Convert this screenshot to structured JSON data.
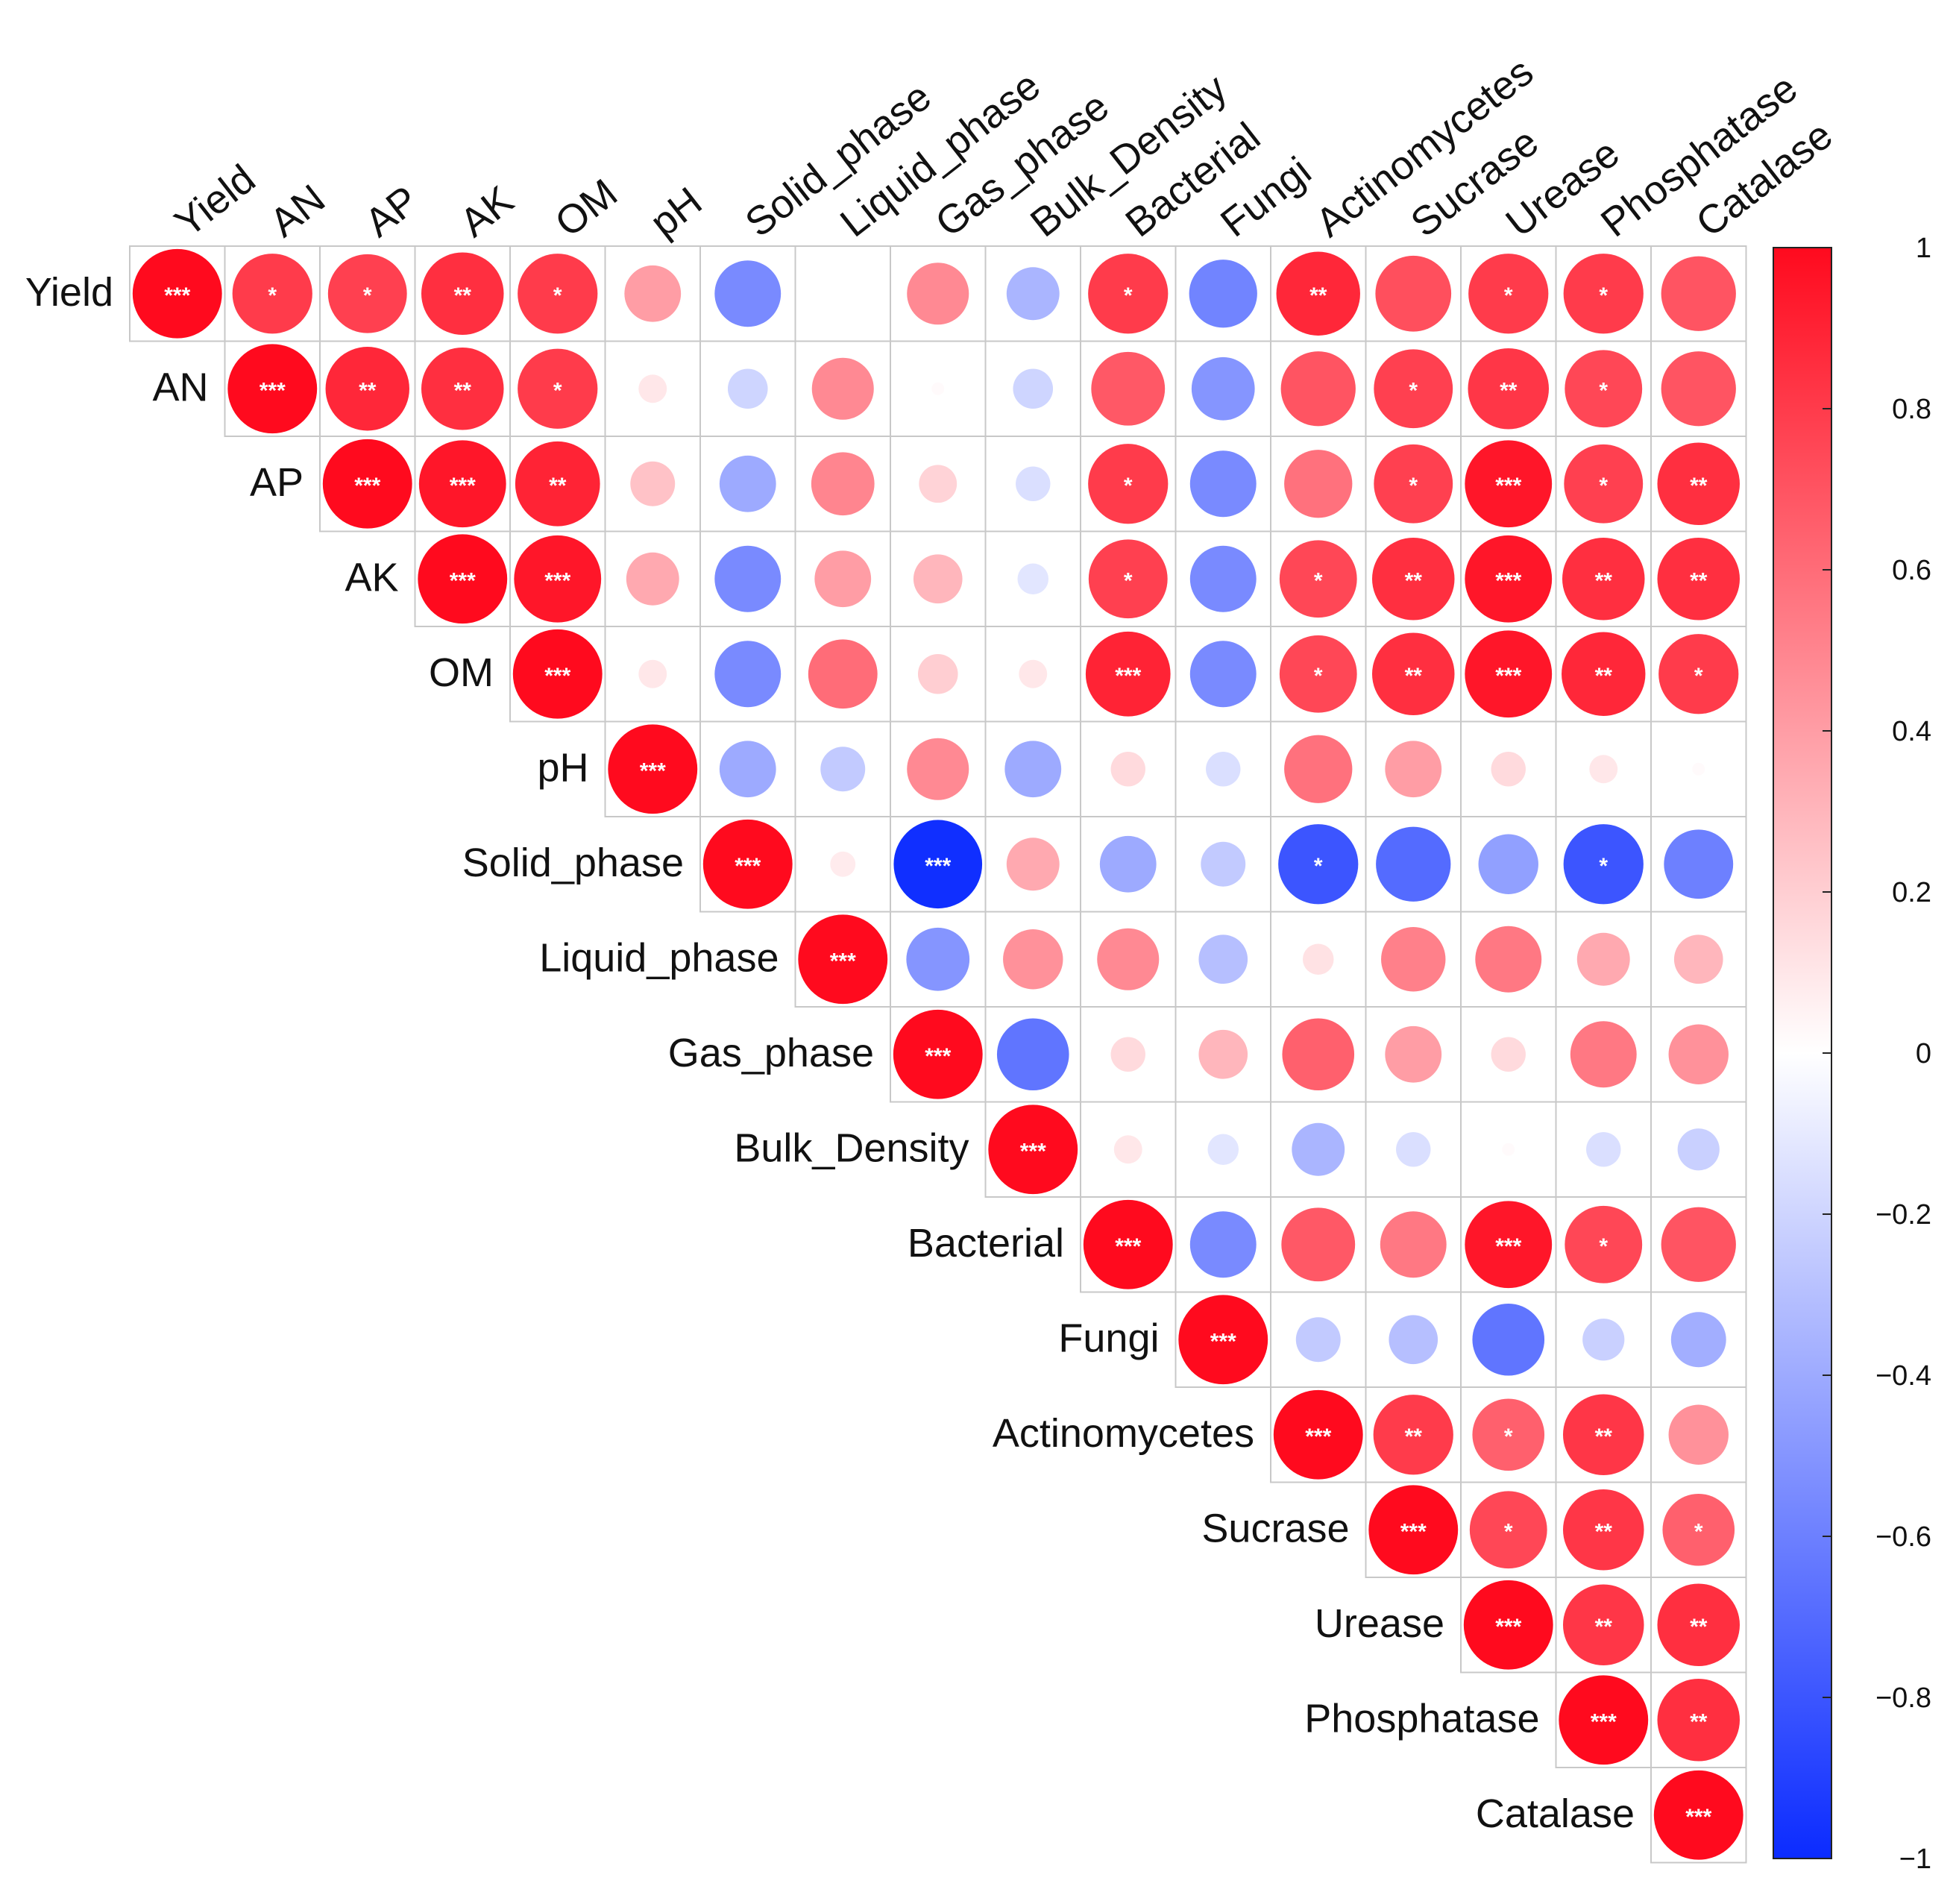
{
  "chart_data": {
    "type": "heatmap",
    "subtype": "correlation-circle-matrix-upper-triangle",
    "variables": [
      "Yield",
      "AN",
      "AP",
      "AK",
      "OM",
      "pH",
      "Solid_phase",
      "Liquid_phase",
      "Gas_phase",
      "Bulk_Density",
      "Bacterial",
      "Fungi",
      "Actinomycetes",
      "Sucrase",
      "Urease",
      "Phosphatase",
      "Catalase"
    ],
    "correlations": [
      [
        1.0,
        0.8,
        0.78,
        0.85,
        0.8,
        0.4,
        -0.55,
        0.0,
        0.48,
        -0.35,
        0.8,
        -0.58,
        0.88,
        0.72,
        0.8,
        0.8,
        0.7
      ],
      [
        null,
        1.0,
        0.88,
        0.85,
        0.8,
        0.1,
        -0.2,
        0.48,
        0.02,
        -0.2,
        0.68,
        -0.5,
        0.7,
        0.78,
        0.82,
        0.75,
        0.7
      ],
      [
        null,
        null,
        1.0,
        0.95,
        0.9,
        0.25,
        -0.4,
        0.5,
        0.18,
        -0.15,
        0.8,
        -0.55,
        0.58,
        0.78,
        0.95,
        0.78,
        0.85
      ],
      [
        null,
        null,
        null,
        1.0,
        0.95,
        0.35,
        -0.55,
        0.4,
        0.3,
        -0.12,
        0.78,
        -0.55,
        0.75,
        0.85,
        0.95,
        0.85,
        0.85
      ],
      [
        null,
        null,
        null,
        null,
        1.0,
        0.1,
        -0.55,
        0.6,
        0.2,
        0.1,
        0.9,
        -0.55,
        0.75,
        0.85,
        0.95,
        0.88,
        0.8
      ],
      [
        null,
        null,
        null,
        null,
        null,
        1.0,
        -0.4,
        -0.25,
        0.48,
        -0.4,
        0.15,
        -0.15,
        0.58,
        0.4,
        0.15,
        0.1,
        0.02
      ],
      [
        null,
        null,
        null,
        null,
        null,
        null,
        1.0,
        0.08,
        -0.98,
        0.35,
        -0.4,
        -0.25,
        -0.8,
        -0.7,
        -0.45,
        -0.8,
        -0.6
      ],
      [
        null,
        null,
        null,
        null,
        null,
        null,
        null,
        1.0,
        -0.5,
        0.45,
        0.48,
        -0.3,
        0.12,
        0.52,
        0.55,
        0.35,
        0.3
      ],
      [
        null,
        null,
        null,
        null,
        null,
        null,
        null,
        null,
        1.0,
        -0.65,
        0.15,
        0.3,
        0.65,
        0.4,
        0.15,
        0.55,
        0.45
      ],
      [
        null,
        null,
        null,
        null,
        null,
        null,
        null,
        null,
        null,
        1.0,
        0.1,
        -0.12,
        -0.35,
        -0.15,
        0.02,
        -0.15,
        -0.22
      ],
      [
        null,
        null,
        null,
        null,
        null,
        null,
        null,
        null,
        null,
        null,
        1.0,
        -0.55,
        0.68,
        0.55,
        0.95,
        0.75,
        0.7
      ],
      [
        null,
        null,
        null,
        null,
        null,
        null,
        null,
        null,
        null,
        null,
        null,
        1.0,
        -0.25,
        -0.3,
        -0.65,
        -0.22,
        -0.38
      ],
      [
        null,
        null,
        null,
        null,
        null,
        null,
        null,
        null,
        null,
        null,
        null,
        null,
        1.0,
        0.8,
        0.65,
        0.82,
        0.45
      ],
      [
        null,
        null,
        null,
        null,
        null,
        null,
        null,
        null,
        null,
        null,
        null,
        null,
        null,
        1.0,
        0.75,
        0.82,
        0.65
      ],
      [
        null,
        null,
        null,
        null,
        null,
        null,
        null,
        null,
        null,
        null,
        null,
        null,
        null,
        null,
        1.0,
        0.82,
        0.85
      ],
      [
        null,
        null,
        null,
        null,
        null,
        null,
        null,
        null,
        null,
        null,
        null,
        null,
        null,
        null,
        null,
        1.0,
        0.85
      ],
      [
        null,
        null,
        null,
        null,
        null,
        null,
        null,
        null,
        null,
        null,
        null,
        null,
        null,
        null,
        null,
        null,
        1.0
      ]
    ],
    "significance": [
      [
        "***",
        "*",
        "*",
        "**",
        "*",
        "",
        "",
        "",
        "",
        "",
        "*",
        "",
        "**",
        "",
        "*",
        "*",
        ""
      ],
      [
        "",
        "***",
        "**",
        "**",
        "*",
        "",
        "",
        "",
        "",
        "",
        "",
        "",
        "",
        "*",
        "**",
        "*",
        ""
      ],
      [
        "",
        "",
        "***",
        "***",
        "**",
        "",
        "",
        "",
        "",
        "",
        "*",
        "",
        "",
        "*",
        "***",
        "*",
        "**"
      ],
      [
        "",
        "",
        "",
        "***",
        "***",
        "",
        "",
        "",
        "",
        "",
        "*",
        "",
        "*",
        "**",
        "***",
        "**",
        "**"
      ],
      [
        "",
        "",
        "",
        "",
        "***",
        "",
        "",
        "",
        "",
        "",
        "***",
        "",
        "*",
        "**",
        "***",
        "**",
        "*"
      ],
      [
        "",
        "",
        "",
        "",
        "",
        "***",
        "",
        "",
        "",
        "",
        "",
        "",
        "",
        "",
        "",
        "",
        ""
      ],
      [
        "",
        "",
        "",
        "",
        "",
        "",
        "***",
        "",
        "***",
        "",
        "",
        "",
        "*",
        "",
        "",
        "*",
        ""
      ],
      [
        "",
        "",
        "",
        "",
        "",
        "",
        "",
        "***",
        "",
        "",
        "",
        "",
        "",
        "",
        "",
        "",
        ""
      ],
      [
        "",
        "",
        "",
        "",
        "",
        "",
        "",
        "",
        "***",
        "",
        "",
        "",
        "",
        "",
        "",
        "",
        ""
      ],
      [
        "",
        "",
        "",
        "",
        "",
        "",
        "",
        "",
        "",
        "***",
        "",
        "",
        "",
        "",
        "",
        "",
        ""
      ],
      [
        "",
        "",
        "",
        "",
        "",
        "",
        "",
        "",
        "",
        "",
        "***",
        "",
        "",
        "",
        "***",
        "*",
        ""
      ],
      [
        "",
        "",
        "",
        "",
        "",
        "",
        "",
        "",
        "",
        "",
        "",
        "***",
        "",
        "",
        "",
        "",
        ""
      ],
      [
        "",
        "",
        "",
        "",
        "",
        "",
        "",
        "",
        "",
        "",
        "",
        "",
        "***",
        "**",
        "*",
        "**",
        ""
      ],
      [
        "",
        "",
        "",
        "",
        "",
        "",
        "",
        "",
        "",
        "",
        "",
        "",
        "",
        "***",
        "*",
        "**",
        "*"
      ],
      [
        "",
        "",
        "",
        "",
        "",
        "",
        "",
        "",
        "",
        "",
        "",
        "",
        "",
        "",
        "***",
        "**",
        "**"
      ],
      [
        "",
        "",
        "",
        "",
        "",
        "",
        "",
        "",
        "",
        "",
        "",
        "",
        "",
        "",
        "",
        "***",
        "**"
      ],
      [
        "",
        "",
        "",
        "",
        "",
        "",
        "",
        "",
        "",
        "",
        "",
        "",
        "",
        "",
        "",
        "",
        "***"
      ]
    ],
    "colorbar": {
      "range": [
        -1,
        1
      ],
      "ticks": [
        "1",
        "0.8",
        "0.6",
        "0.4",
        "0.2",
        "0",
        "−0.2",
        "−0.4",
        "−0.6",
        "−0.8",
        "−1"
      ],
      "tick_values": [
        1,
        0.8,
        0.6,
        0.4,
        0.2,
        0,
        -0.2,
        -0.4,
        -0.6,
        -0.8,
        -1
      ],
      "colors": {
        "negative": "#0b2bff",
        "zero": "#ffffff",
        "positive": "#ff0a1e"
      }
    }
  }
}
